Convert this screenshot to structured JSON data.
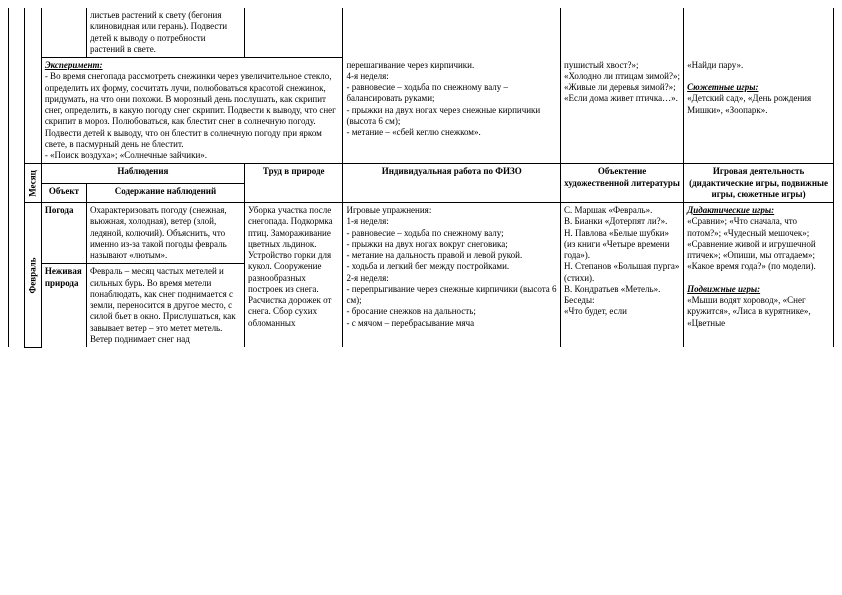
{
  "cell_a1": "листьев растений к свету (бегония клиновидная или герань). Подвести детей к выводу о потребности растений в свете.",
  "cell_a2_title": "Эксперимент:",
  "cell_a2_body": "- Во время снегопада рассмотреть снежинки через увеличительное стекло, определить их форму, сосчитать лучи, полюбоваться красотой снежинок, придумать, на что они похожи. В морозный день послушать, как скрипит снег, определить, в какую погоду снег скрипит. Подвести к выводу, что снег скрипит в мороз. Полюбоваться, как блестит снег в солнечную погоду. Подвести детей к выводу, что он блестит в солнечную погоду при ярком свете, в пасмурный день не блестит.\n- «Поиск воздуха»; «Солнечные зайчики».",
  "cell_a3": "перешагивание через кирпичики.\n4-я неделя:\n- равновесие – ходьба по снежному валу – балансировать руками;\n- прыжки на двух ногах через снежные кирпичики (высота 6 см);\n- метание – «сбей кеглю снежком».",
  "cell_a4": "пушистый хвост?»;\n«Холодно ли птицам зимой?»;\n«Живые ли деревья зимой?»;\n«Если дома живет птичка…».",
  "cell_a5_line1": "«Найди пару».",
  "cell_a5_title": "Сюжетные игры:",
  "cell_a5_body": "«Детский сад», «День рождения Мишки», «Зоопарк».",
  "hdr_mesyac": "Месяц",
  "hdr_nabl": "Наблюдения",
  "hdr_trud": "Труд в природе",
  "hdr_fizo": "Индивидуальная работа по ФИЗО",
  "hdr_lit1": "Объектение",
  "hdr_lit2": "художественной литературы",
  "hdr_game": "Игровая деятельность (дидактические игры, подвижные игры, сюжетные игры)",
  "hdr_obj": "Объект",
  "hdr_content": "Содержание наблюдений",
  "month_fevral": "Февраль",
  "row1_obj": "Погода",
  "row1_content": "Охарактеризовать погоду (снежная, вьюжная, холодная), ветер (злой, ледяной, колючий). Объяснить, что именно из-за такой погоды февраль называют «лютым».",
  "row2_obj": "Неживая природа",
  "row2_content": "Февраль – месяц частых метелей и сильных бурь. Во время метели понаблюдать, как снег поднимается с земли, переносится в другое место, с силой бьет в окно. Прислушаться, как завывает ветер – это метет метель. Ветер поднимает снег над",
  "col_trud": "Уборка участка после снегопада. Подкормка птиц. Замораживание цветных льдинок. Устройство горки для кукол. Сооружение разнообразных построек из снега. Расчистка дорожек от снега. Сбор сухих обломанных",
  "col_fizo": "Игровые упражнения:\n1-я неделя:\n- равновесие – ходьба по снежному валу;\n- прыжки на двух ногах вокруг снеговика;\n- метание на дальность правой и левой рукой.\n- ходьба и легкий бег между постройками.\n2-я неделя:\n- перепрыгивание через снежные кирпичики (высота 6 см);\n- бросание снежков на дальность;\n- с мячом – перебрасывание мяча",
  "col_lit": "С. Маршак «Февраль».\nВ. Бианки «Дотерпят ли?».\nН. Павлова «Белые шубки» (из книги «Четыре времени года»).\nН. Степанов «Большая пурга» (стихи).\nВ. Кондратьев «Метель».\nБеседы:\n«Что будет, если",
  "col_game_title": "Дидактические игры:",
  "col_game_body": "«Сравни»; «Что сначала, что потом?»; «Чудесный мешочек»; «Сравнение живой и игрушечной птичек»; «Опиши, мы отгадаем»; «Какое время года?» (по модели).",
  "col_game_title2": "Подвижные игры:",
  "col_game_body2": "«Мыши водят хоровод», «Снег кружится», «Лиса в курятнике», «Цветные"
}
